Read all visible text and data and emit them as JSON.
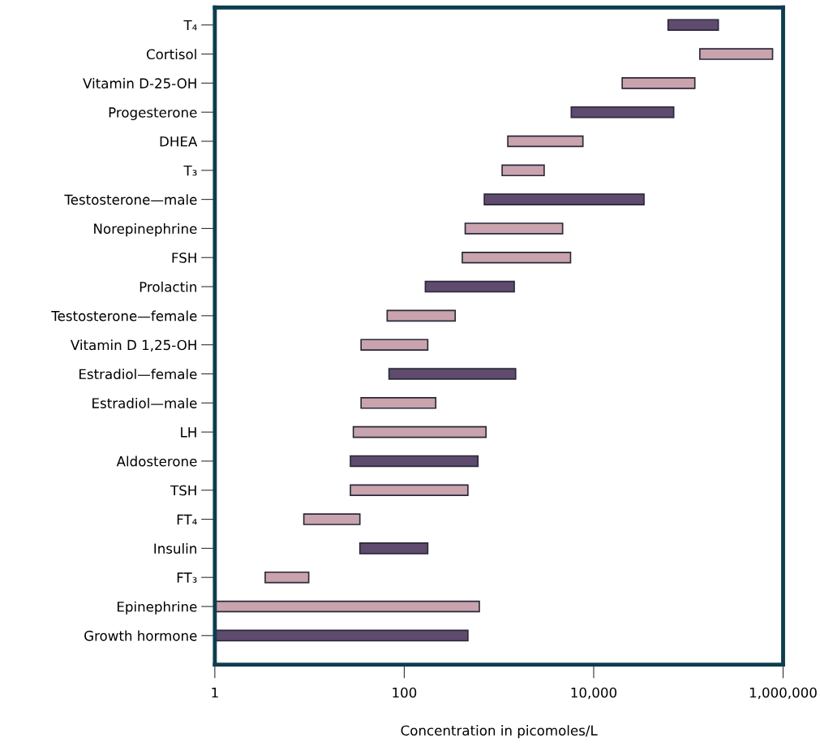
{
  "chart_data": {
    "type": "bar",
    "orientation": "horizontal",
    "log": "x",
    "xlabel": "Concentration in picomoles/L",
    "categories": [
      "T₄",
      "Cortisol",
      "Vitamin D-25-OH",
      "Progesterone",
      "DHEA",
      "T₃",
      "Testosterone—male",
      "Norepinephrine",
      "FSH",
      "Prolactin",
      "Testosterone—female",
      "Vitamin D 1,25-OH",
      "Estradiol—female",
      "Estradiol—male",
      "LH",
      "Aldosterone",
      "TSH",
      "FT₄",
      "Insulin",
      "FT₃",
      "Epinephrine",
      "Growth hormone"
    ],
    "base": [
      61000,
      132000,
      20000,
      5800,
      1240,
      1080,
      700,
      440,
      410,
      167,
      66,
      35,
      69,
      35,
      29,
      27,
      27,
      8.7,
      34,
      3.4,
      1,
      1
    ],
    "values": [
      146000,
      642000,
      97000,
      64200,
      6460,
      1920,
      33300,
      4260,
      5290,
      1283,
      279,
      142,
      1431,
      180,
      701,
      573,
      443,
      25.3,
      143,
      6.4,
      619,
      469
    ],
    "colors": [
      "#5e4b6e",
      "#c9a3ad",
      "#c9a3ad",
      "#5e4b6e",
      "#c9a3ad",
      "#c9a3ad",
      "#5e4b6e",
      "#c9a3ad",
      "#c9a3ad",
      "#5e4b6e",
      "#c9a3ad",
      "#c9a3ad",
      "#5e4b6e",
      "#c9a3ad",
      "#c9a3ad",
      "#5e4b6e",
      "#c9a3ad",
      "#c9a3ad",
      "#5e4b6e",
      "#c9a3ad",
      "#c9a3ad",
      "#5e4b6e"
    ],
    "xlim": [
      1,
      1000000
    ],
    "xticks": [
      1,
      100,
      {
        "value": 10000,
        "label": "10,000"
      },
      {
        "value": 1000000,
        "label": "1,000,000"
      }
    ],
    "grid": false
  }
}
